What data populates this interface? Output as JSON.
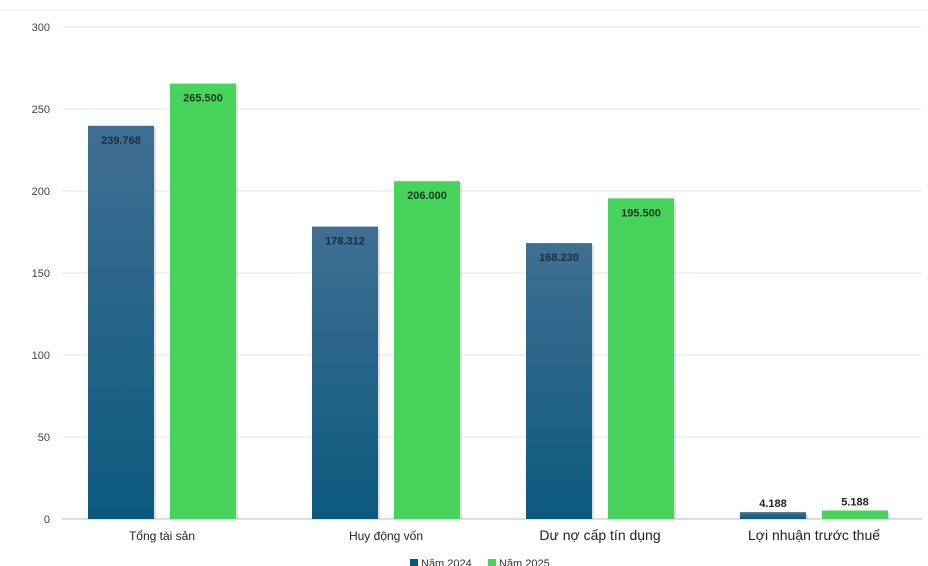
{
  "chart_data": {
    "type": "bar",
    "categories": [
      "Tổng tài sản",
      "Huy động vốn",
      "Dư nợ cấp tín dụng",
      "Lợi nhuận trước thuế"
    ],
    "series": [
      {
        "name": "Năm 2024",
        "values": [
          239.768,
          178.312,
          168.23,
          4.188
        ],
        "labels": [
          "239.768",
          "178.312",
          "168.230",
          "4.188"
        ],
        "color": "#0b5a7e",
        "color_top": "#3f6f92"
      },
      {
        "name": "Năm 2025",
        "values": [
          265.5,
          206.0,
          195.5,
          5.188
        ],
        "labels": [
          "265.500",
          "206.000",
          "195.500",
          "5.188"
        ],
        "color": "#48d45c"
      }
    ],
    "yticks": [
      "0",
      "50",
      "100",
      "150",
      "200",
      "250",
      "300"
    ],
    "ylim": [
      0,
      300
    ],
    "grid": true,
    "legend_position": "bottom"
  }
}
